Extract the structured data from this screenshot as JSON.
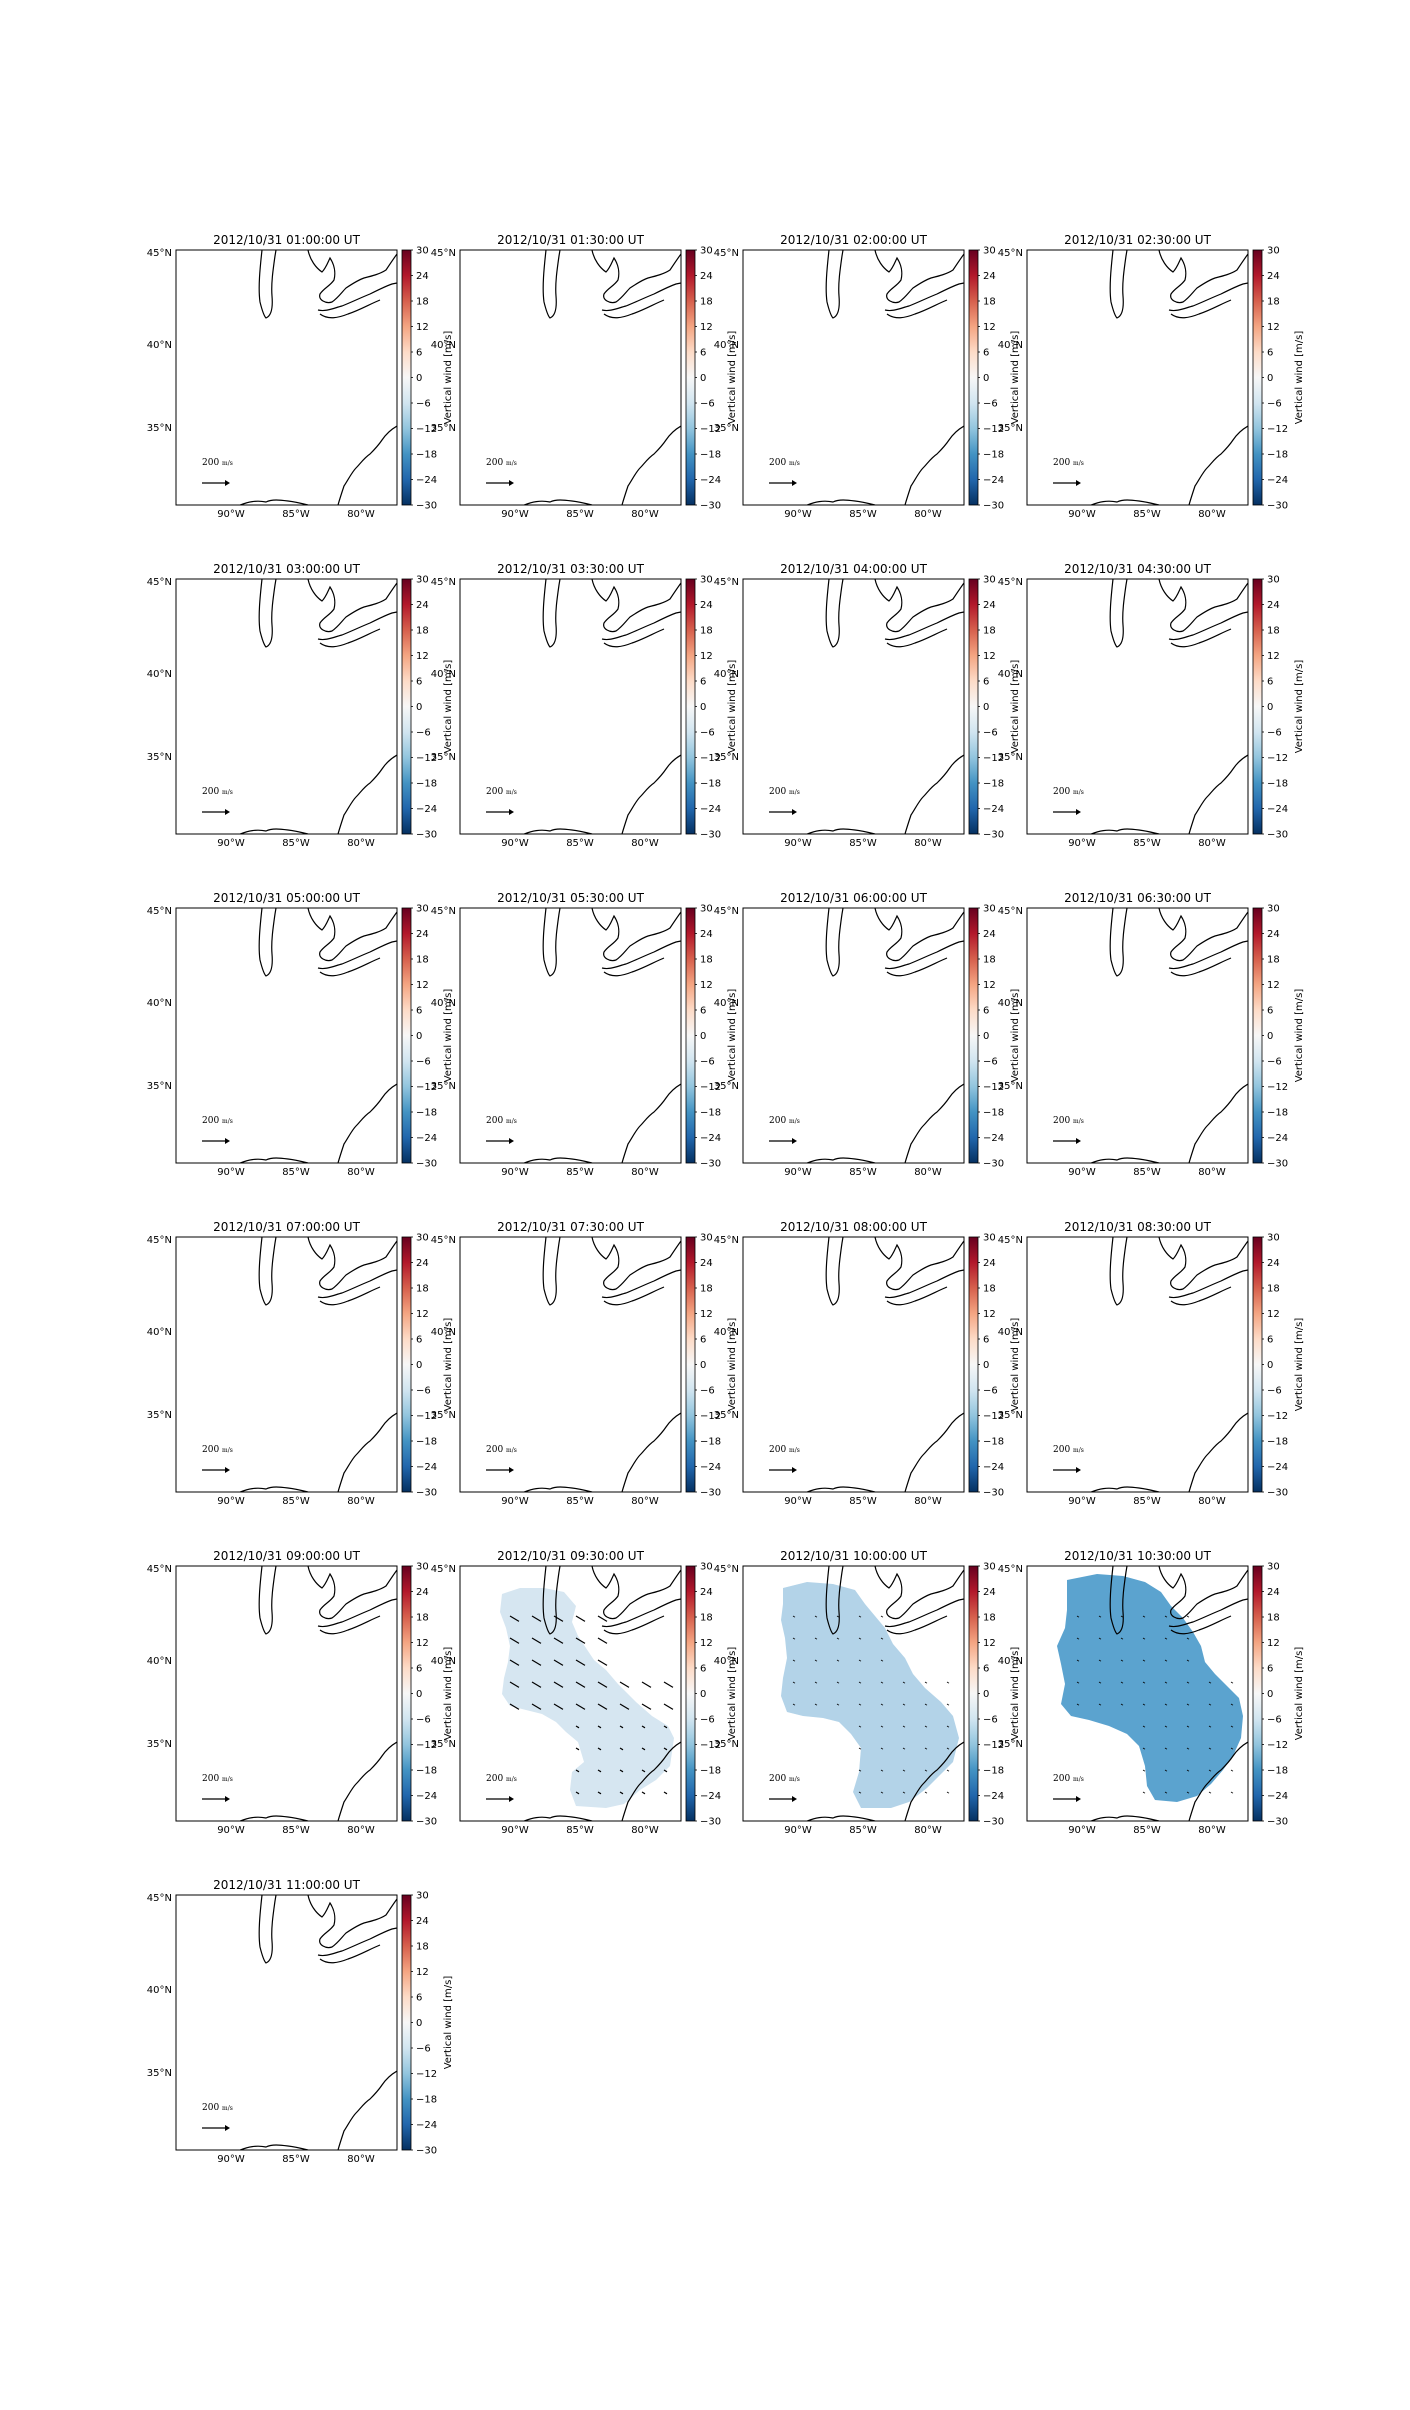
{
  "chart_data": {
    "type": "heatmap",
    "layout": {
      "rows": 6,
      "cols": 4
    },
    "title_suffix": "UT",
    "colorbar": {
      "label": "Vertical wind [m/s]",
      "vmin": -30,
      "vmax": 30,
      "ticks": [
        "30",
        "24",
        "18",
        "12",
        "6",
        "0",
        "−6",
        "−12",
        "−18",
        "−24",
        "−30"
      ],
      "colors": [
        "#67001f",
        "#b2182b",
        "#d6604d",
        "#f4a582",
        "#fddbc7",
        "#f7f7f7",
        "#d1e5f0",
        "#92c5de",
        "#4393c3",
        "#2166ac",
        "#053061"
      ]
    },
    "x_ticks": [
      "90°W",
      "85°W",
      "80°W"
    ],
    "y_ticks": [
      "45°N",
      "40°N",
      "35°N"
    ],
    "quiver_key_label": "200",
    "quiver_key_unit": "m/s",
    "coastline_color": "#000000",
    "panels": [
      {
        "title": "2012/10/31 01:00:00 UT",
        "field": null
      },
      {
        "title": "2012/10/31 01:30:00 UT",
        "field": null
      },
      {
        "title": "2012/10/31 02:00:00 UT",
        "field": null
      },
      {
        "title": "2012/10/31 02:30:00 UT",
        "field": null
      },
      {
        "title": "2012/10/31 03:00:00 UT",
        "field": null
      },
      {
        "title": "2012/10/31 03:30:00 UT",
        "field": null
      },
      {
        "title": "2012/10/31 04:00:00 UT",
        "field": null
      },
      {
        "title": "2012/10/31 04:30:00 UT",
        "field": null
      },
      {
        "title": "2012/10/31 05:00:00 UT",
        "field": null
      },
      {
        "title": "2012/10/31 05:30:00 UT",
        "field": null
      },
      {
        "title": "2012/10/31 06:00:00 UT",
        "field": null
      },
      {
        "title": "2012/10/31 06:30:00 UT",
        "field": null
      },
      {
        "title": "2012/10/31 07:00:00 UT",
        "field": null
      },
      {
        "title": "2012/10/31 07:30:00 UT",
        "field": null
      },
      {
        "title": "2012/10/31 08:00:00 UT",
        "field": null
      },
      {
        "title": "2012/10/31 08:30:00 UT",
        "field": null
      },
      {
        "title": "2012/10/31 09:00:00 UT",
        "field": null
      },
      {
        "title": "2012/10/31 09:30:00 UT",
        "field": {
          "value": -5,
          "color": "#d6e6f1",
          "arrows": "strong"
        }
      },
      {
        "title": "2012/10/31 10:00:00 UT",
        "field": {
          "value": -9,
          "color": "#b3d3e8",
          "arrows": "weak"
        }
      },
      {
        "title": "2012/10/31 10:30:00 UT",
        "field": {
          "value": -16,
          "color": "#5ba3cf",
          "arrows": "weak"
        }
      },
      {
        "title": "2012/10/31 11:00:00 UT",
        "field": null
      }
    ]
  }
}
